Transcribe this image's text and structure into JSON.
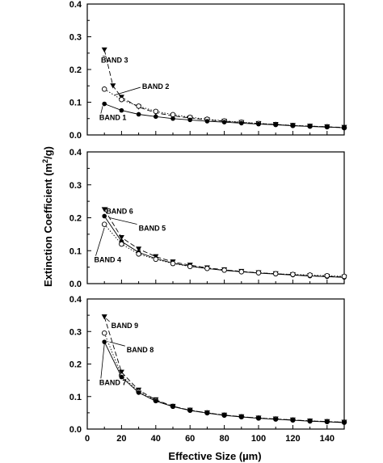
{
  "chart_data": {
    "type": "scatter",
    "ylabel_parts": [
      "Extinction Coefficient (m",
      "2",
      "/g)"
    ],
    "xlabel": "Effective Size (µm)",
    "x_ticks": [
      0,
      20,
      40,
      60,
      80,
      100,
      120,
      140
    ],
    "y_ticks": [
      "0.0",
      "0.1",
      "0.2",
      "0.3",
      "0.4"
    ],
    "xlim": [
      0,
      150
    ],
    "ylim": [
      0,
      0.4
    ],
    "grid": false,
    "panels": [
      {
        "series": [
          {
            "name": "BAND 3",
            "marker": "triangle-down",
            "line": "dash",
            "x": [
              10,
              15,
              20,
              30,
              40,
              50,
              60,
              70,
              80,
              90,
              100,
              110,
              120,
              130,
              140,
              150
            ],
            "y": [
              0.26,
              0.15,
              0.115,
              0.085,
              0.068,
              0.058,
              0.052,
              0.046,
              0.042,
              0.038,
              0.035,
              0.032,
              0.029,
              0.027,
              0.025,
              0.023
            ]
          },
          {
            "name": "BAND 2",
            "marker": "circle-open",
            "line": "dot",
            "x": [
              10,
              20,
              30,
              40,
              50,
              60,
              70,
              80,
              90,
              100,
              110,
              120,
              130,
              140,
              150
            ],
            "y": [
              0.14,
              0.108,
              0.088,
              0.072,
              0.062,
              0.054,
              0.048,
              0.043,
              0.039,
              0.035,
              0.032,
              0.029,
              0.027,
              0.025,
              0.022
            ]
          },
          {
            "name": "BAND 1",
            "marker": "circle-filled",
            "line": "solid",
            "x": [
              10,
              20,
              30,
              40,
              50,
              60,
              70,
              80,
              90,
              100,
              110,
              120,
              130,
              140,
              150
            ],
            "y": [
              0.095,
              0.075,
              0.063,
              0.056,
              0.05,
              0.046,
              0.042,
              0.039,
              0.036,
              0.033,
              0.031,
              0.028,
              0.026,
              0.024,
              0.022
            ]
          }
        ],
        "annotations": [
          {
            "text": "BAND 3",
            "ax": 8,
            "ay": 0.228,
            "tx": 11,
            "ty": 0.24
          },
          {
            "text": "BAND 2",
            "ax": 32,
            "ay": 0.148,
            "tx": 16,
            "ty": 0.122
          },
          {
            "text": "BAND 1",
            "ax": 7,
            "ay": 0.053,
            "tx": 9,
            "ty": 0.088
          }
        ]
      },
      {
        "series": [
          {
            "name": "BAND 6",
            "marker": "triangle-down",
            "line": "dash",
            "x": [
              10,
              20,
              30,
              40,
              50,
              60,
              70,
              80,
              90,
              100,
              110,
              120,
              130,
              140,
              150
            ],
            "y": [
              0.225,
              0.14,
              0.105,
              0.082,
              0.066,
              0.056,
              0.048,
              0.042,
              0.037,
              0.033,
              0.03,
              0.027,
              0.024,
              0.022,
              0.02
            ]
          },
          {
            "name": "BAND 5",
            "marker": "circle-filled",
            "line": "solid",
            "x": [
              10,
              20,
              30,
              40,
              50,
              60,
              70,
              80,
              90,
              100,
              110,
              120,
              130,
              140,
              150
            ],
            "y": [
              0.205,
              0.128,
              0.095,
              0.076,
              0.062,
              0.053,
              0.046,
              0.04,
              0.036,
              0.032,
              0.029,
              0.026,
              0.023,
              0.021,
              0.019
            ]
          },
          {
            "name": "BAND 4",
            "marker": "circle-open",
            "line": "dot",
            "x": [
              10,
              20,
              30,
              40,
              50,
              60,
              70,
              80,
              90,
              100,
              110,
              120,
              130,
              140,
              150
            ],
            "y": [
              0.18,
              0.12,
              0.09,
              0.074,
              0.061,
              0.052,
              0.046,
              0.041,
              0.036,
              0.033,
              0.03,
              0.028,
              0.026,
              0.024,
              0.022
            ]
          }
        ],
        "annotations": [
          {
            "text": "BAND 6",
            "ax": 11,
            "ay": 0.22,
            "tx": 11,
            "ty": 0.225
          },
          {
            "text": "BAND 5",
            "ax": 30,
            "ay": 0.168,
            "tx": 13,
            "ty": 0.2
          },
          {
            "text": "BAND 4",
            "ax": 4,
            "ay": 0.072,
            "tx": 10,
            "ty": 0.17
          }
        ]
      },
      {
        "series": [
          {
            "name": "BAND 9",
            "marker": "triangle-down",
            "line": "dash",
            "x": [
              10,
              20,
              30,
              40,
              50,
              60,
              70,
              80,
              90,
              100,
              110,
              120,
              130,
              140,
              150
            ],
            "y": [
              0.345,
              0.175,
              0.12,
              0.09,
              0.07,
              0.058,
              0.05,
              0.043,
              0.038,
              0.034,
              0.031,
              0.028,
              0.025,
              0.023,
              0.021
            ]
          },
          {
            "name": "BAND 8",
            "marker": "circle-open",
            "line": "dot",
            "x": [
              10,
              20,
              30,
              40,
              50,
              60,
              70,
              80,
              90,
              100,
              110,
              120,
              130,
              140,
              150
            ],
            "y": [
              0.295,
              0.165,
              0.115,
              0.088,
              0.07,
              0.058,
              0.05,
              0.043,
              0.038,
              0.034,
              0.031,
              0.028,
              0.025,
              0.023,
              0.021
            ]
          },
          {
            "name": "BAND 7",
            "marker": "circle-filled",
            "line": "solid",
            "x": [
              10,
              20,
              30,
              40,
              50,
              60,
              70,
              80,
              90,
              100,
              110,
              120,
              130,
              140,
              150
            ],
            "y": [
              0.268,
              0.16,
              0.112,
              0.086,
              0.069,
              0.057,
              0.049,
              0.042,
              0.037,
              0.033,
              0.03,
              0.027,
              0.024,
              0.022,
              0.02
            ]
          }
        ],
        "annotations": [
          {
            "text": "BAND 9",
            "ax": 14,
            "ay": 0.318,
            "tx": 11,
            "ty": 0.34
          },
          {
            "text": "BAND 8",
            "ax": 23,
            "ay": 0.243,
            "tx": 13,
            "ty": 0.268
          },
          {
            "text": "BAND 7",
            "ax": 7,
            "ay": 0.143,
            "tx": 10,
            "ty": 0.262
          }
        ]
      }
    ]
  }
}
